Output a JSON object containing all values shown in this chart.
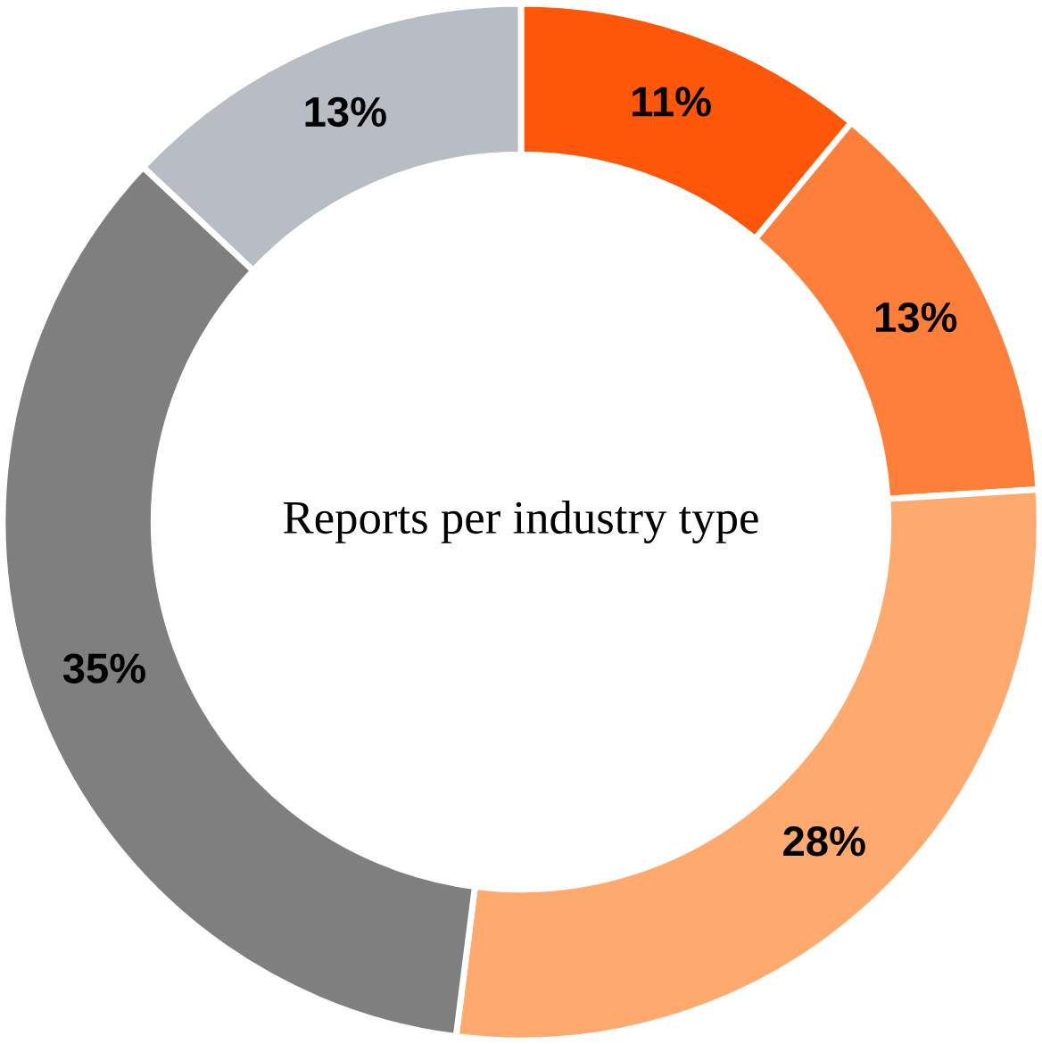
{
  "chart_data": {
    "type": "donut",
    "title": "Reports per industry type",
    "categories": [
      null,
      null,
      null,
      null,
      null
    ],
    "values": [
      11,
      13,
      28,
      35,
      13
    ],
    "colors": [
      "#fe5709",
      "#fe7f3a",
      "#feaa6f",
      "#7f7f7f",
      "#b8bdc5"
    ],
    "value_labels": [
      "11%",
      "13%",
      "28%",
      "35%",
      "13%"
    ]
  }
}
